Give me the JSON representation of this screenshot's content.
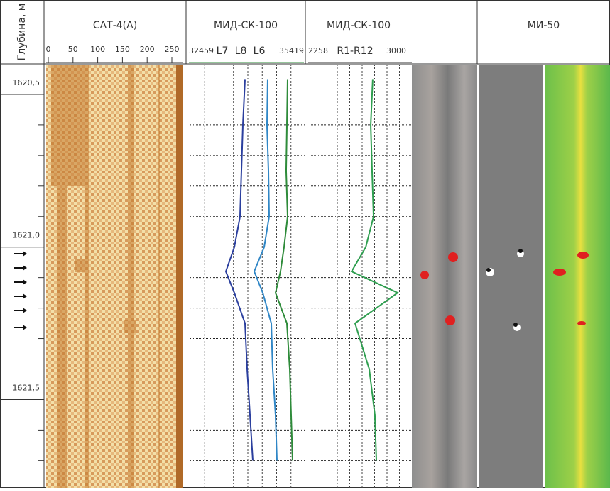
{
  "depth_axis": {
    "label": "Глубина, м",
    "ylim": [
      1620.4,
      1621.79
    ],
    "yticks": [
      {
        "value": 1620.5,
        "label": "1620,5"
      },
      {
        "value": 1621.0,
        "label": "1621,0"
      },
      {
        "value": 1621.5,
        "label": "1621,5"
      }
    ],
    "minor_yticks": [
      1620.6,
      1620.7,
      1620.8,
      1620.9,
      1621.1,
      1621.2,
      1621.3,
      1621.4,
      1621.6,
      1621.7
    ]
  },
  "chart_data": [
    {
      "type": "image-track",
      "title": "САТ-4(А)",
      "xlim": [
        0,
        250
      ],
      "xticks": [
        0,
        50,
        100,
        150,
        200,
        250
      ]
    },
    {
      "type": "line",
      "title": "МИД-СК-100",
      "xlim": [
        32459,
        35419
      ],
      "y": [
        1620.45,
        1620.6,
        1620.75,
        1620.9,
        1621.0,
        1621.08,
        1621.15,
        1621.25,
        1621.4,
        1621.55,
        1621.7
      ],
      "series": [
        {
          "name": "L7",
          "color": "#2b3f9e",
          "values": [
            33866,
            33811,
            33774,
            33738,
            33592,
            33373,
            33592,
            33866,
            33921,
            33994,
            34067
          ]
        },
        {
          "name": "L8",
          "color": "#2f86c6",
          "values": [
            34450,
            34432,
            34469,
            34487,
            34359,
            34103,
            34323,
            34542,
            34578,
            34651,
            34688
          ]
        },
        {
          "name": "L6",
          "color": "#2e8b3a",
          "values": [
            34962,
            34944,
            34925,
            34962,
            34871,
            34779,
            34651,
            34944,
            35017,
            35053,
            35090
          ]
        }
      ]
    },
    {
      "type": "line",
      "title": "МИД-СК-100",
      "xlim": [
        2258,
        3000
      ],
      "y": [
        1620.45,
        1620.6,
        1620.75,
        1620.9,
        1621.0,
        1621.08,
        1621.15,
        1621.25,
        1621.4,
        1621.55,
        1621.7
      ],
      "series": [
        {
          "name": "R1-R12",
          "color": "#2e9e4f",
          "values": [
            2708,
            2693,
            2703,
            2714,
            2656,
            2550,
            2894,
            2576,
            2682,
            2724,
            2735
          ]
        }
      ]
    },
    {
      "type": "image-track",
      "title": "МИ-50"
    }
  ]
}
